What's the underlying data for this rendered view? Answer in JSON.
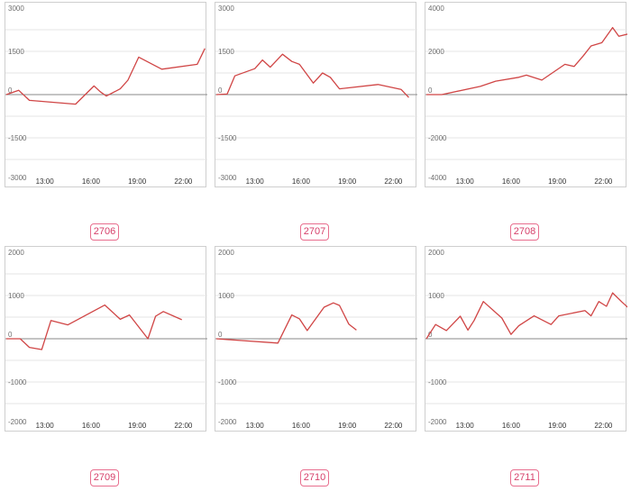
{
  "colors": {
    "series": "#d04545",
    "zero_line": "#8a8a8a",
    "grid": "#e4e4e4",
    "badge": "#e86e8e"
  },
  "chart_data": [
    {
      "type": "line",
      "label": "2706",
      "ylim": [
        -3000,
        3000
      ],
      "y_ticks": [
        3000,
        1500,
        0,
        -1500,
        -3000
      ],
      "x_ticks": [
        "13:00",
        "16:00",
        "19:00",
        "22:00"
      ],
      "x_range": [
        10.5,
        23.5
      ],
      "grid": true,
      "x": [
        10.5,
        11.3,
        12.0,
        15.0,
        16.2,
        16.6,
        17.0,
        17.9,
        18.4,
        19.1,
        20.0,
        20.6,
        22.9,
        23.4
      ],
      "y": [
        0,
        150,
        -200,
        -330,
        300,
        100,
        -50,
        200,
        500,
        1300,
        1050,
        880,
        1050,
        1600
      ]
    },
    {
      "type": "line",
      "label": "2707",
      "ylim": [
        -3000,
        3000
      ],
      "y_ticks": [
        3000,
        1500,
        0,
        -1500,
        -3000
      ],
      "x_ticks": [
        "13:00",
        "16:00",
        "19:00",
        "22:00"
      ],
      "x_range": [
        10.5,
        23.5
      ],
      "grid": true,
      "x": [
        10.5,
        11.2,
        11.7,
        13.0,
        13.5,
        14.0,
        14.8,
        15.4,
        15.9,
        16.8,
        17.4,
        17.9,
        18.5,
        21.0,
        22.5,
        23.0
      ],
      "y": [
        0,
        20,
        650,
        900,
        1200,
        950,
        1400,
        1150,
        1050,
        400,
        750,
        600,
        200,
        350,
        180,
        -100
      ]
    },
    {
      "type": "line",
      "label": "2708",
      "ylim": [
        -4000,
        4000
      ],
      "y_ticks": [
        4000,
        2000,
        0,
        -2000,
        -4000
      ],
      "x_ticks": [
        "13:00",
        "16:00",
        "19:00",
        "22:00"
      ],
      "x_range": [
        10.5,
        23.5
      ],
      "grid": true,
      "x": [
        10.5,
        11.5,
        14.0,
        15.0,
        16.5,
        17.0,
        18.0,
        19.5,
        20.1,
        20.7,
        21.2,
        21.9,
        22.6,
        23.0,
        23.6
      ],
      "y": [
        0,
        0,
        380,
        620,
        800,
        900,
        670,
        1400,
        1300,
        1800,
        2250,
        2400,
        3100,
        2700,
        2800
      ]
    },
    {
      "type": "line",
      "label": "2709",
      "ylim": [
        -2000,
        2000
      ],
      "y_ticks": [
        2000,
        1000,
        0,
        -1000,
        -2000
      ],
      "x_ticks": [
        "13:00",
        "16:00",
        "19:00",
        "22:00"
      ],
      "x_range": [
        10.5,
        23.5
      ],
      "grid": true,
      "x": [
        10.5,
        11.4,
        12.0,
        12.8,
        13.4,
        14.5,
        16.9,
        17.9,
        18.5,
        19.7,
        20.2,
        20.7,
        21.9
      ],
      "y": [
        0,
        0,
        -200,
        -250,
        420,
        320,
        780,
        450,
        550,
        0,
        520,
        630,
        440
      ]
    },
    {
      "type": "line",
      "label": "2710",
      "ylim": [
        -2000,
        2000
      ],
      "y_ticks": [
        2000,
        1000,
        0,
        -1000,
        -2000
      ],
      "x_ticks": [
        "13:00",
        "16:00",
        "19:00",
        "22:00"
      ],
      "x_range": [
        10.5,
        23.5
      ],
      "grid": true,
      "x": [
        10.5,
        14.5,
        15.4,
        15.9,
        16.4,
        17.5,
        18.1,
        18.5,
        19.1,
        19.6
      ],
      "y": [
        0,
        -100,
        550,
        460,
        190,
        730,
        830,
        770,
        340,
        200
      ]
    },
    {
      "type": "line",
      "label": "2711",
      "ylim": [
        -2000,
        2000
      ],
      "y_ticks": [
        2000,
        1000,
        0,
        -1000,
        -2000
      ],
      "x_ticks": [
        "13:00",
        "16:00",
        "19:00",
        "22:00"
      ],
      "x_range": [
        10.5,
        23.5
      ],
      "grid": true,
      "x": [
        10.5,
        11.1,
        11.8,
        12.7,
        13.2,
        13.6,
        14.2,
        15.4,
        16.0,
        16.5,
        17.5,
        18.6,
        19.1,
        20.8,
        21.2,
        21.7,
        22.2,
        22.6,
        23.2,
        23.6
      ],
      "y": [
        0,
        330,
        190,
        520,
        200,
        420,
        860,
        480,
        100,
        300,
        530,
        330,
        530,
        650,
        530,
        860,
        750,
        1060,
        850,
        720
      ]
    }
  ]
}
